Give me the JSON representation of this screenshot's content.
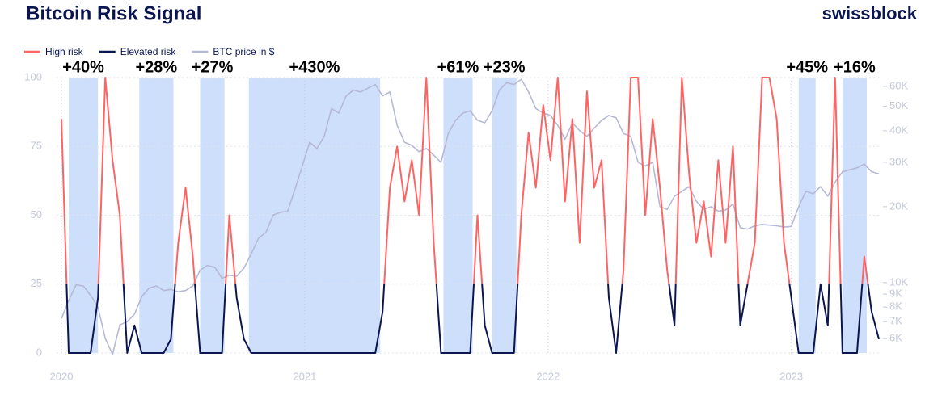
{
  "chart_data": {
    "type": "line",
    "title": "Bitcoin Risk Signal",
    "brand": "swissblock",
    "x": [
      2020.0,
      2020.03,
      2020.06,
      2020.09,
      2020.12,
      2020.15,
      2020.18,
      2020.21,
      2020.24,
      2020.27,
      2020.3,
      2020.33,
      2020.36,
      2020.39,
      2020.42,
      2020.45,
      2020.48,
      2020.51,
      2020.54,
      2020.57,
      2020.6,
      2020.63,
      2020.66,
      2020.69,
      2020.72,
      2020.75,
      2020.78,
      2020.81,
      2020.84,
      2020.87,
      2020.9,
      2020.93,
      2020.96,
      2020.99,
      2021.02,
      2021.05,
      2021.08,
      2021.11,
      2021.14,
      2021.17,
      2021.2,
      2021.23,
      2021.26,
      2021.29,
      2021.32,
      2021.35,
      2021.38,
      2021.41,
      2021.44,
      2021.47,
      2021.5,
      2021.53,
      2021.56,
      2021.59,
      2021.62,
      2021.65,
      2021.68,
      2021.71,
      2021.74,
      2021.77,
      2021.8,
      2021.83,
      2021.86,
      2021.89,
      2021.92,
      2021.95,
      2021.98,
      2022.01,
      2022.04,
      2022.07,
      2022.1,
      2022.13,
      2022.16,
      2022.19,
      2022.22,
      2022.25,
      2022.28,
      2022.31,
      2022.34,
      2022.37,
      2022.4,
      2022.43,
      2022.46,
      2022.49,
      2022.52,
      2022.55,
      2022.58,
      2022.61,
      2022.64,
      2022.67,
      2022.7,
      2022.73,
      2022.76,
      2022.79,
      2022.82,
      2022.85,
      2022.88,
      2022.91,
      2022.94,
      2022.97,
      2023.0,
      2023.03,
      2023.06,
      2023.09,
      2023.12,
      2023.15,
      2023.18,
      2023.21,
      2023.24,
      2023.27,
      2023.3,
      2023.33,
      2023.36
    ],
    "risk": {
      "values": [
        85,
        0,
        0,
        0,
        0,
        20,
        100,
        70,
        50,
        0,
        10,
        0,
        0,
        0,
        0,
        5,
        40,
        60,
        35,
        0,
        0,
        0,
        0,
        50,
        20,
        5,
        0,
        0,
        0,
        0,
        0,
        0,
        0,
        0,
        0,
        0,
        0,
        0,
        0,
        0,
        0,
        0,
        0,
        0,
        15,
        60,
        75,
        55,
        70,
        50,
        100,
        40,
        0,
        0,
        0,
        0,
        0,
        50,
        10,
        0,
        0,
        0,
        0,
        50,
        80,
        60,
        90,
        70,
        100,
        55,
        85,
        40,
        95,
        60,
        70,
        20,
        0,
        30,
        100,
        100,
        50,
        85,
        60,
        30,
        10,
        100,
        65,
        40,
        55,
        35,
        70,
        40,
        75,
        10,
        25,
        40,
        100,
        100,
        85,
        40,
        20,
        0,
        0,
        0,
        25,
        10,
        100,
        0,
        0,
        0,
        35,
        15,
        5
      ],
      "threshold": 25,
      "levels": [
        {
          "name": "High risk",
          "color": "#ff6464",
          "side": "above"
        },
        {
          "name": "Elevated risk",
          "color": "#0b1650",
          "side": "below"
        }
      ]
    },
    "series": [
      {
        "name": "BTC price in $",
        "color": "#b6b9d6",
        "axis": "y2",
        "values": [
          7200,
          8500,
          9800,
          9700,
          8900,
          8000,
          6000,
          5200,
          6800,
          7000,
          7500,
          8800,
          9500,
          9700,
          9300,
          9400,
          9200,
          9300,
          9700,
          11200,
          11700,
          11500,
          10400,
          10700,
          10600,
          11400,
          13000,
          15000,
          15800,
          18500,
          19000,
          19200,
          23500,
          29000,
          36000,
          34000,
          38000,
          49000,
          47000,
          55000,
          58000,
          57000,
          59000,
          61000,
          55000,
          57000,
          42000,
          36000,
          35000,
          33000,
          34000,
          32000,
          30000,
          39000,
          44000,
          47000,
          48000,
          44000,
          43000,
          48000,
          58000,
          62000,
          61000,
          64000,
          57000,
          49000,
          47000,
          46000,
          42000,
          37000,
          43000,
          40000,
          38000,
          41000,
          44000,
          46000,
          45000,
          39000,
          38000,
          30000,
          29000,
          30000,
          20000,
          19500,
          22000,
          23000,
          24000,
          21000,
          19500,
          20000,
          19200,
          19400,
          20500,
          16500,
          16300,
          16800,
          17000,
          16900,
          16800,
          16600,
          16700,
          20000,
          23000,
          22500,
          24000,
          22000,
          25000,
          27500,
          28000,
          28500,
          29500,
          27500,
          27000
        ]
      }
    ],
    "regions": [
      {
        "start": 2020.03,
        "end": 2020.15,
        "label": "+40%"
      },
      {
        "start": 2020.32,
        "end": 2020.46,
        "label": "+28%"
      },
      {
        "start": 2020.57,
        "end": 2020.67,
        "label": "+27%"
      },
      {
        "start": 2020.77,
        "end": 2021.31,
        "label": "+430%"
      },
      {
        "start": 2021.57,
        "end": 2021.69,
        "label": "+61%"
      },
      {
        "start": 2021.77,
        "end": 2021.87,
        "label": "+23%"
      },
      {
        "start": 2023.03,
        "end": 2023.1,
        "label": "+45%"
      },
      {
        "start": 2023.21,
        "end": 2023.31,
        "label": "+16%"
      }
    ],
    "region_color": "#cddffb",
    "xlim": [
      2019.98,
      2023.37
    ],
    "xticks": [
      2020,
      2021,
      2022,
      2023
    ],
    "ylim": [
      0,
      100
    ],
    "yticks": [
      0,
      25,
      50,
      75,
      100
    ],
    "y2lim": [
      5260,
      65000
    ],
    "y2log": true,
    "y2ticks": [
      {
        "value": 6000,
        "label": "6K"
      },
      {
        "value": 7000,
        "label": "7K"
      },
      {
        "value": 8000,
        "label": "8K"
      },
      {
        "value": 9000,
        "label": "9K"
      },
      {
        "value": 10000,
        "label": "10K"
      },
      {
        "value": 20000,
        "label": "20K"
      },
      {
        "value": 30000,
        "label": "30K"
      },
      {
        "value": 40000,
        "label": "40K"
      },
      {
        "value": 50000,
        "label": "50K"
      },
      {
        "value": 60000,
        "label": "60K"
      }
    ],
    "grid": true
  }
}
